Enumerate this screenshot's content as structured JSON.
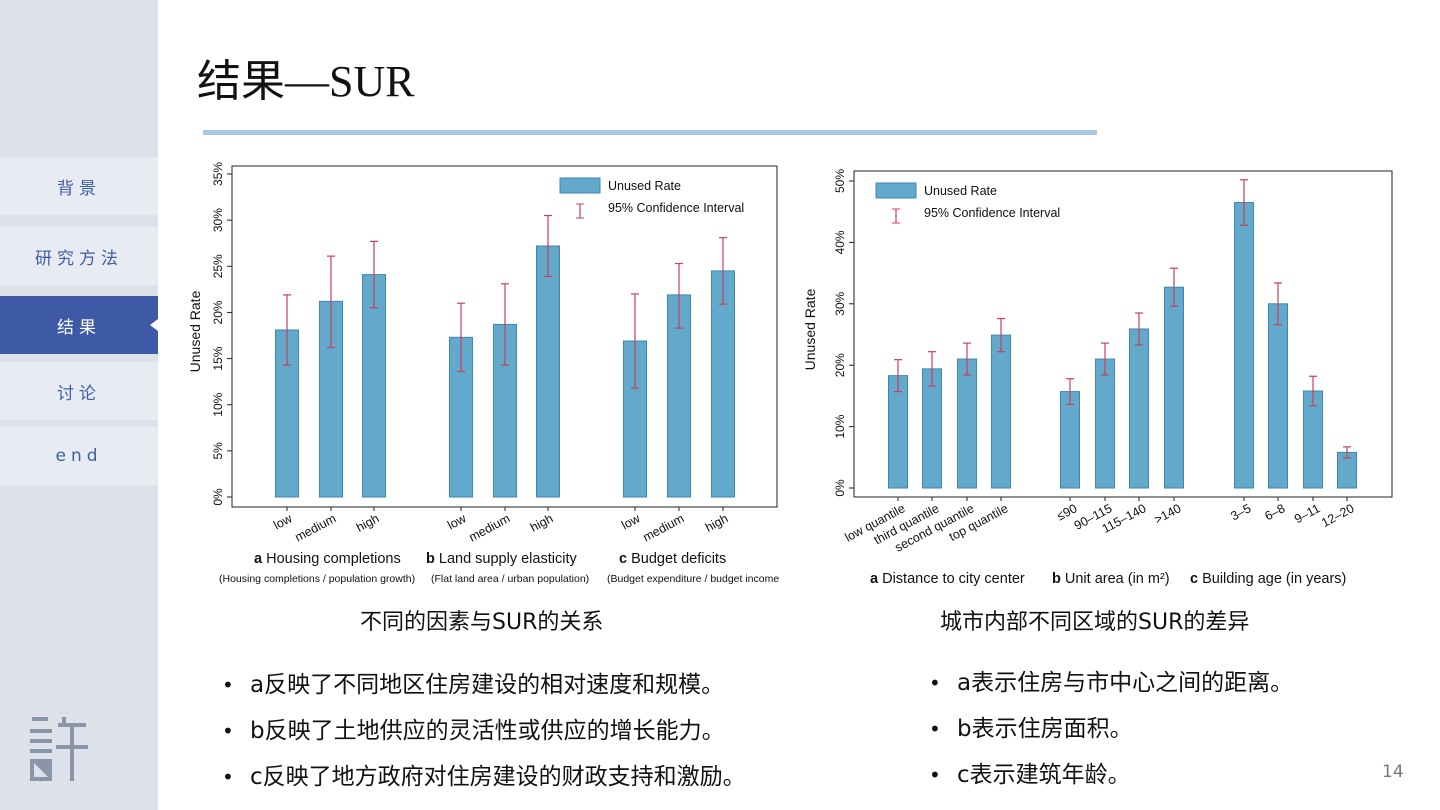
{
  "slide": {
    "title": "结果—SUR",
    "page_number": "14"
  },
  "sidebar": {
    "items": [
      {
        "label": "背景",
        "active": false
      },
      {
        "label": "研究方法",
        "active": false
      },
      {
        "label": "结果",
        "active": true
      },
      {
        "label": "讨论",
        "active": false
      },
      {
        "label": "end",
        "active": false
      }
    ],
    "logo_icon": "xu-character-logo-icon"
  },
  "colors": {
    "sidebar_bg": "#dde2ea",
    "nav_text": "#3f5ea6",
    "nav_active_bg": "#3e5aa7",
    "title_rule": "#a9c8e2",
    "bar_fill": "#63a9cb",
    "error_bar": "#c8405a"
  },
  "captions": {
    "left": "不同的因素与SUR的关系",
    "right": "城市内部不同区域的SUR的差异"
  },
  "bullets": {
    "left": [
      "a反映了不同地区住房建设的相对速度和规模。",
      "b反映了土地供应的灵活性或供应的增长能力。",
      "c反映了地方政府对住房建设的财政支持和激励。"
    ],
    "right": [
      "a表示住房与市中心之间的距离。",
      "b表示住房面积。",
      "c表示建筑年龄。"
    ]
  },
  "chart_data": [
    {
      "type": "bar",
      "ylabel": "Unused Rate",
      "ylim": [
        0,
        35
      ],
      "yticks": [
        "0%",
        "5%",
        "10%",
        "15%",
        "20%",
        "25%",
        "30%",
        "35%"
      ],
      "legend": {
        "position": "top-right",
        "bar_label": "Unused Rate",
        "ci_label": "95% Confidence Interval"
      },
      "groups": [
        {
          "letter": "a",
          "title": "Housing completions",
          "subtitle": "(Housing completions / population growth)",
          "categories": [
            "low",
            "medium",
            "high"
          ],
          "values": [
            18.1,
            21.2,
            24.1
          ],
          "ci_low": [
            14.3,
            16.2,
            20.5
          ],
          "ci_high": [
            21.9,
            26.1,
            27.7
          ]
        },
        {
          "letter": "b",
          "title": "Land supply elasticity",
          "subtitle": "(Flat land area / urban population)",
          "categories": [
            "low",
            "medium",
            "high"
          ],
          "values": [
            17.3,
            18.7,
            27.2
          ],
          "ci_low": [
            13.6,
            14.3,
            23.9
          ],
          "ci_high": [
            21.0,
            23.1,
            30.5
          ]
        },
        {
          "letter": "c",
          "title": "Budget deficits",
          "subtitle": "(Budget expenditure / budget income",
          "categories": [
            "low",
            "medium",
            "high"
          ],
          "values": [
            16.9,
            21.9,
            24.5
          ],
          "ci_low": [
            11.8,
            18.3,
            20.9
          ],
          "ci_high": [
            22.0,
            25.3,
            28.1
          ]
        }
      ]
    },
    {
      "type": "bar",
      "ylabel": "Unused Rate",
      "ylim": [
        0,
        50
      ],
      "yticks": [
        "0%",
        "10%",
        "20%",
        "30%",
        "40%",
        "50%"
      ],
      "legend": {
        "position": "top-left",
        "bar_label": "Unused Rate",
        "ci_label": "95% Confidence Interval"
      },
      "groups": [
        {
          "letter": "a",
          "title": "Distance to city center",
          "categories": [
            "low quantile",
            "third quantile",
            "second quantile",
            "top quantile"
          ],
          "values": [
            18.3,
            19.4,
            21.0,
            24.9
          ],
          "ci_low": [
            15.7,
            16.6,
            18.4,
            22.2
          ],
          "ci_high": [
            20.9,
            22.2,
            23.6,
            27.6
          ]
        },
        {
          "letter": "b",
          "title": "Unit area (in m²)",
          "categories": [
            "≤90",
            "90–115",
            "115–140",
            ">140"
          ],
          "values": [
            15.7,
            21.0,
            25.9,
            32.7
          ],
          "ci_low": [
            13.6,
            18.4,
            23.3,
            29.6
          ],
          "ci_high": [
            17.8,
            23.6,
            28.5,
            35.8
          ]
        },
        {
          "letter": "c",
          "title": "Building age (in years)",
          "categories": [
            "3–5",
            "6–8",
            "9–11",
            "12–20"
          ],
          "values": [
            46.5,
            30.0,
            15.8,
            5.8
          ],
          "ci_low": [
            42.8,
            26.6,
            13.4,
            4.9
          ],
          "ci_high": [
            50.2,
            33.4,
            18.2,
            6.7
          ]
        }
      ]
    }
  ]
}
